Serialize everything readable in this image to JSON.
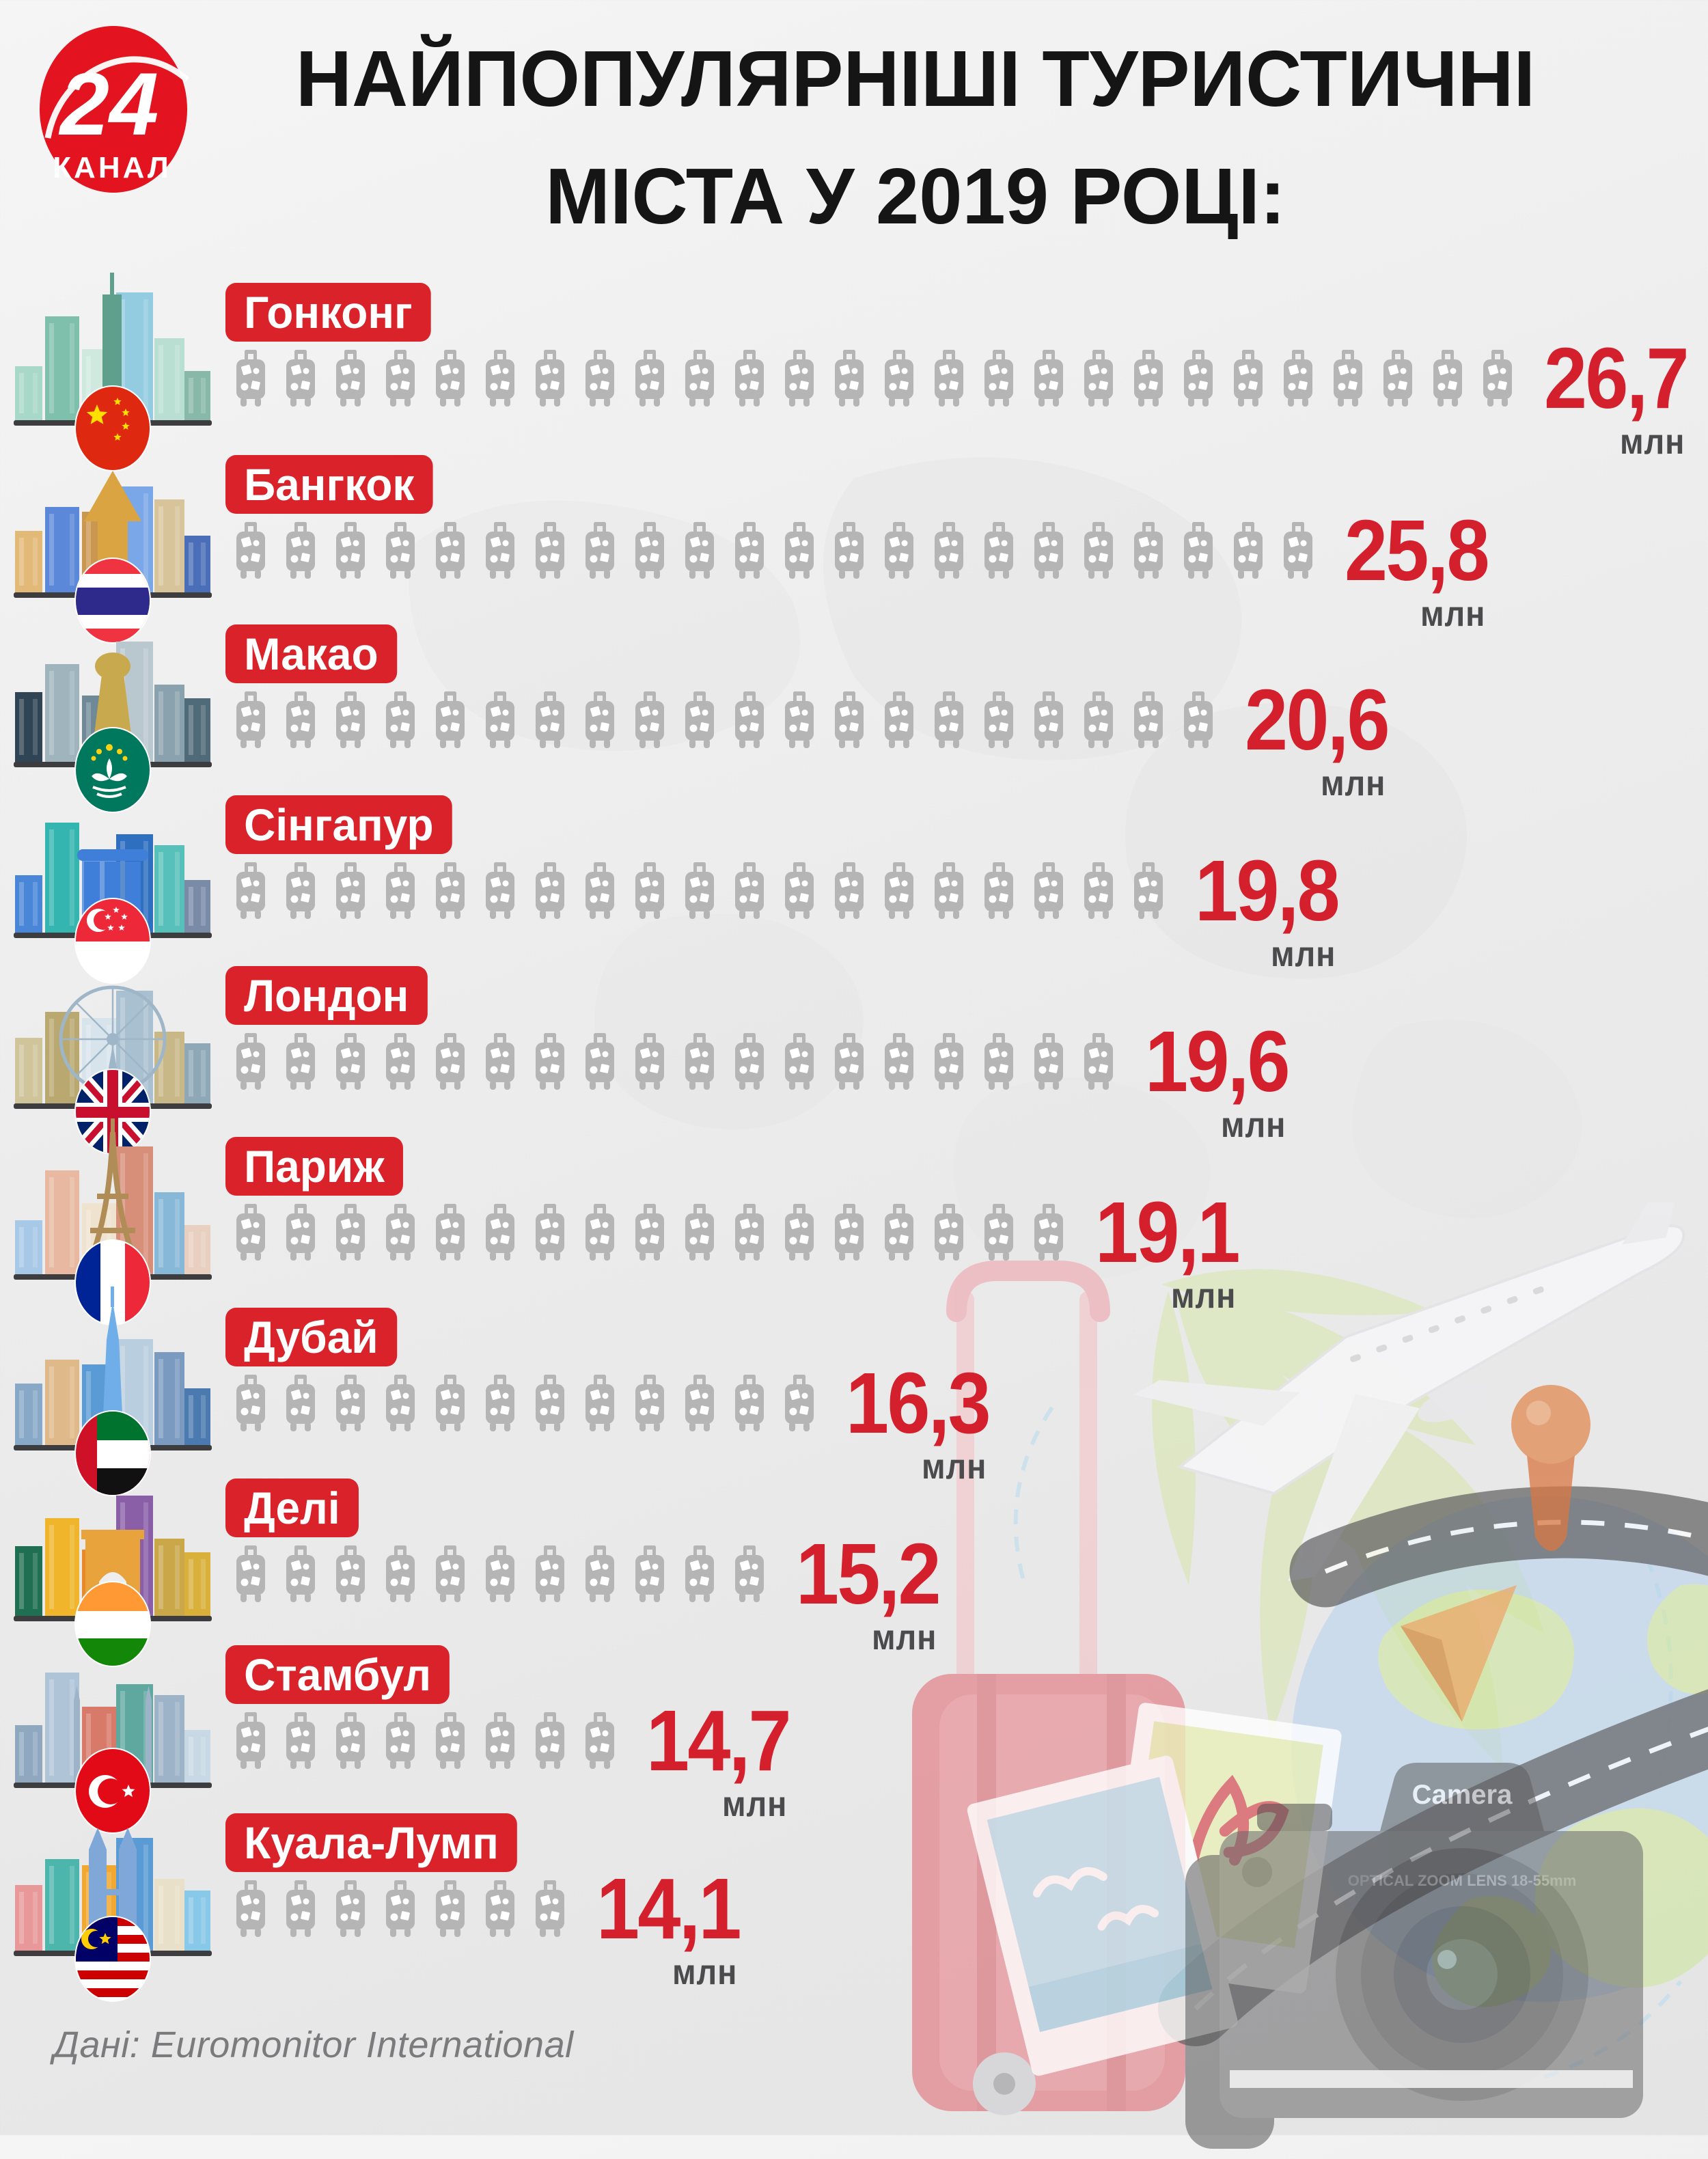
{
  "brand": {
    "number": "24",
    "name": "КАНАЛ",
    "color": "#e3131f"
  },
  "title": {
    "line1": "НАЙПОПУЛЯРНІШІ ТУРИСТИЧНІ",
    "line2": "МІСТА У 2019 РОЦІ:"
  },
  "unit_label": "млн",
  "source": "Дані: Euromonitor International",
  "colors": {
    "accent_red": "#d9222a",
    "value_red": "#d41f2c",
    "suitcase_gray": "#b5b5b6",
    "unit_gray": "#4b4b4d",
    "ground": "#3d3d3f",
    "background": "#ececec"
  },
  "pictogram_icon": "suitcase-icon",
  "rows": [
    {
      "id": "hongkong",
      "label": "Гонконг",
      "value": "26,7",
      "millions": 26.7,
      "suitcases": 26,
      "flag": "china",
      "palette": [
        "#a8d8c8",
        "#7fc0ad",
        "#cfe9df",
        "#93cbe0",
        "#b9dfd2",
        "#88b8a8",
        "#5ea08c"
      ],
      "landmark": "spire"
    },
    {
      "id": "bangkok",
      "label": "Бангкок",
      "value": "25,8",
      "millions": 25.8,
      "suitcases": 22,
      "flag": "thailand",
      "palette": [
        "#e3b978",
        "#5b88d8",
        "#c9974f",
        "#7aa7e8",
        "#d8c49a",
        "#4a6fb8",
        "#d9a441"
      ],
      "landmark": "temple"
    },
    {
      "id": "macau",
      "label": "Макао",
      "value": "20,6",
      "millions": 20.6,
      "suitcases": 20,
      "flag": "macau",
      "palette": [
        "#2f4454",
        "#9fb4bd",
        "#6f8a96",
        "#b9c8ce",
        "#8aa2ad",
        "#4f6a78",
        "#c9a94e"
      ],
      "landmark": "lisboa"
    },
    {
      "id": "singapore",
      "label": "Сінгапур",
      "value": "19,8",
      "millions": 19.8,
      "suitcases": 19,
      "flag": "singapore",
      "palette": [
        "#4a86d8",
        "#35b5b0",
        "#6f9fe0",
        "#2f6fc0",
        "#58c0ba",
        "#7a8ba8",
        "#3f7fd9"
      ],
      "landmark": "mbs"
    },
    {
      "id": "london",
      "label": "Лондон",
      "value": "19,6",
      "millions": 19.6,
      "suitcases": 18,
      "flag": "uk",
      "palette": [
        "#cfc49a",
        "#b9a86f",
        "#d8e4ec",
        "#a8c0d0",
        "#c8b888",
        "#8fa8b8",
        "#9fb6c8"
      ],
      "landmark": "wheel"
    },
    {
      "id": "paris",
      "label": "Париж",
      "value": "19,1",
      "millions": 19.1,
      "suitcases": 17,
      "flag": "france",
      "palette": [
        "#a8c8e8",
        "#e8b9a0",
        "#efe3d0",
        "#d88f7a",
        "#88b8d8",
        "#e8cfc0",
        "#b08d57"
      ],
      "landmark": "eiffel"
    },
    {
      "id": "dubai",
      "label": "Дубай",
      "value": "16,3",
      "millions": 16.3,
      "suitcases": 12,
      "flag": "uae",
      "palette": [
        "#88a8c8",
        "#e0b98a",
        "#5b9bd5",
        "#b9cede",
        "#7a9ac0",
        "#4a7ab0",
        "#6faee8"
      ],
      "landmark": "burj"
    },
    {
      "id": "delhi",
      "label": "Делі",
      "value": "15,2",
      "millions": 15.2,
      "suitcases": 11,
      "flag": "india",
      "palette": [
        "#1f6f52",
        "#f0b52a",
        "#e8892a",
        "#8a5fa8",
        "#caa84a",
        "#d8b03a",
        "#e8a33d"
      ],
      "landmark": "gate"
    },
    {
      "id": "istanbul",
      "label": "Стамбул",
      "value": "14,7",
      "millions": 14.7,
      "suitcases": 8,
      "flag": "turkey",
      "palette": [
        "#8fa8c0",
        "#b0c4d8",
        "#d87a6a",
        "#5fa8a0",
        "#9db3c8",
        "#c8d8e4",
        "#9db3c8"
      ],
      "landmark": "mosque"
    },
    {
      "id": "kualalumpur",
      "label": "Куала-Лумп",
      "value": "14,1",
      "millions": 14.1,
      "suitcases": 7,
      "flag": "malaysia",
      "palette": [
        "#e89898",
        "#4db6ac",
        "#f0a830",
        "#5b9bd5",
        "#e8e0c8",
        "#88c8e8",
        "#7fa8d9"
      ],
      "landmark": "petronas"
    }
  ],
  "decor": {
    "camera_label": "Camera",
    "lens_text": "OPTICAL ZOOM LENS 18-55mm"
  },
  "chart_data": {
    "type": "bar",
    "orientation": "horizontal-pictogram",
    "title": "НАЙПОПУЛЯРНІШІ ТУРИСТИЧНІ МІСТА У 2019 РОЦІ:",
    "categories": [
      "Гонконг",
      "Бангкок",
      "Макао",
      "Сінгапур",
      "Лондон",
      "Париж",
      "Дубай",
      "Делі",
      "Стамбул",
      "Куала-Лумп"
    ],
    "values": [
      26.7,
      25.8,
      20.6,
      19.8,
      19.6,
      19.1,
      16.3,
      15.2,
      14.7,
      14.1
    ],
    "unit": "млн",
    "pictogram_counts": [
      26,
      22,
      20,
      19,
      18,
      17,
      12,
      11,
      8,
      7
    ],
    "legend_position": "none",
    "grid": false,
    "source": "Дані: Euromonitor International"
  }
}
